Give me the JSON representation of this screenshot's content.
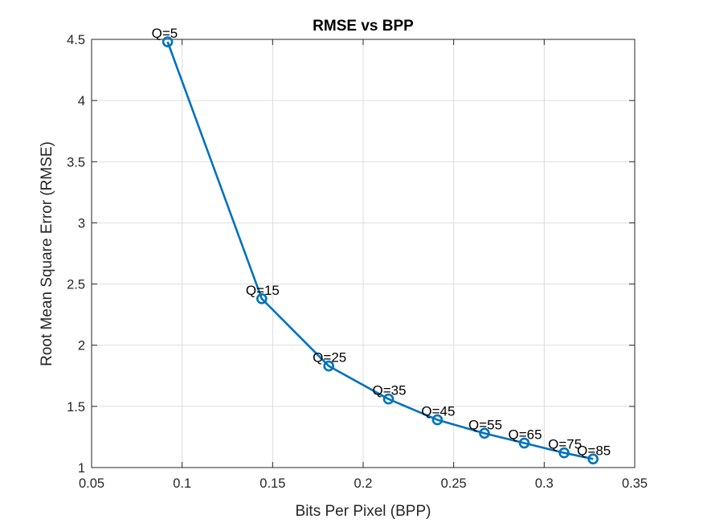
{
  "chart_data": {
    "type": "line",
    "title": "RMSE vs BPP",
    "xlabel": "Bits Per Pixel (BPP)",
    "ylabel": "Root Mean Square Error (RMSE)",
    "xlim": [
      0.05,
      0.35
    ],
    "ylim": [
      1,
      4.5
    ],
    "xticks": [
      0.05,
      0.1,
      0.15,
      0.2,
      0.25,
      0.3,
      0.35
    ],
    "xtick_labels": [
      "0.05",
      "0.1",
      "0.15",
      "0.2",
      "0.25",
      "0.3",
      "0.35"
    ],
    "yticks": [
      1,
      1.5,
      2,
      2.5,
      3,
      3.5,
      4,
      4.5
    ],
    "ytick_labels": [
      "1",
      "1.5",
      "2",
      "2.5",
      "3",
      "3.5",
      "4",
      "4.5"
    ],
    "grid": true,
    "series": [
      {
        "color": "#0072bd",
        "marker": "circle",
        "x": [
          0.092,
          0.144,
          0.181,
          0.214,
          0.241,
          0.267,
          0.289,
          0.311,
          0.327
        ],
        "y": [
          4.48,
          2.38,
          1.83,
          1.56,
          1.39,
          1.28,
          1.2,
          1.12,
          1.07
        ],
        "point_labels": [
          "Q=5",
          "Q=15",
          "Q=25",
          "Q=35",
          "Q=45",
          "Q=55",
          "Q=65",
          "Q=75",
          "Q=85"
        ]
      }
    ]
  }
}
